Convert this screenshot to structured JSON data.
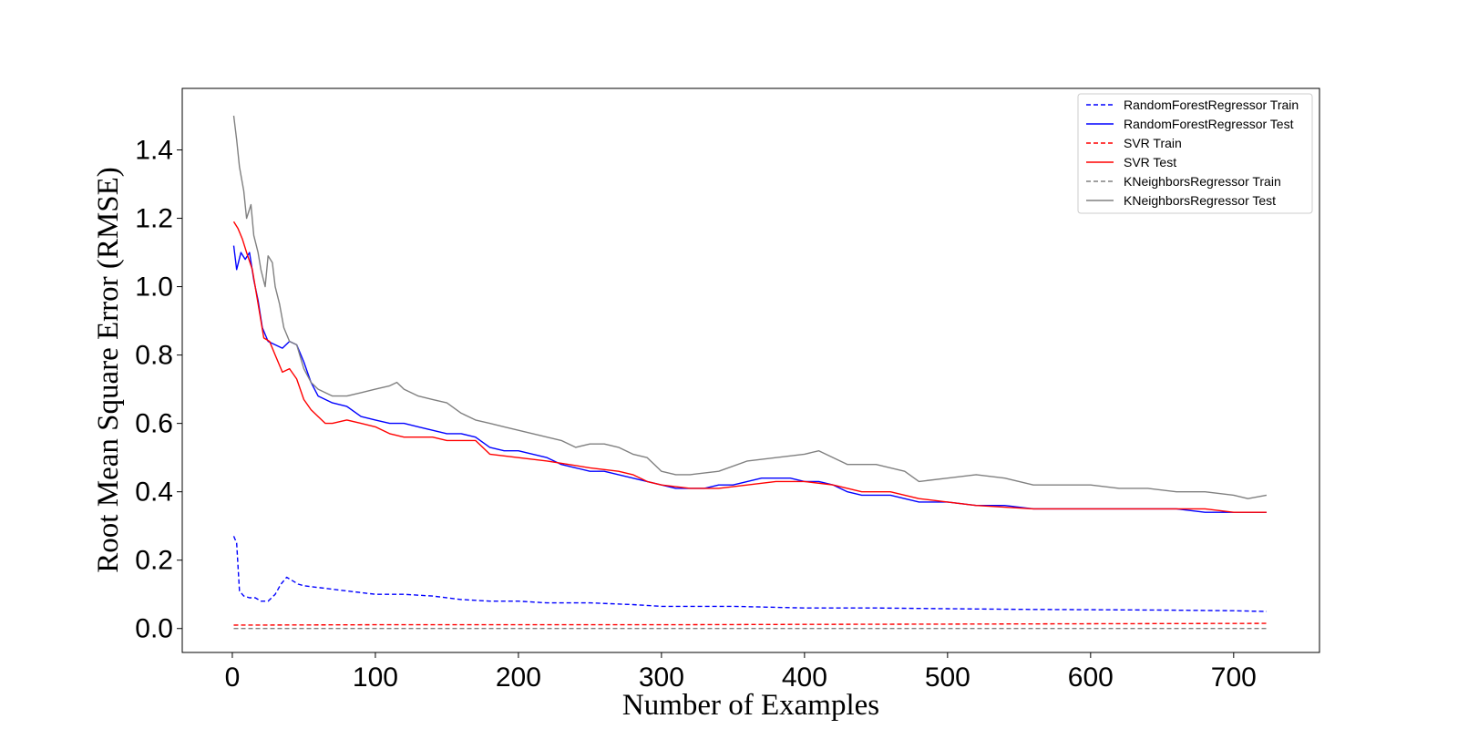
{
  "chart_data": {
    "type": "line",
    "title": "",
    "xlabel": "Number of Examples",
    "ylabel": "Root Mean Square Error (RMSE)",
    "xlim": [
      -35,
      760
    ],
    "ylim": [
      -0.07,
      1.58
    ],
    "xticks": [
      0,
      100,
      200,
      300,
      400,
      500,
      600,
      700
    ],
    "yticks": [
      0.0,
      0.2,
      0.4,
      0.6,
      0.8,
      1.0,
      1.2,
      1.4
    ],
    "ytick_labels": [
      "0.0",
      "0.2",
      "0.4",
      "0.6",
      "0.8",
      "1.0",
      "1.2",
      "1.4"
    ],
    "grid": false,
    "legend_position": "top-right",
    "series": [
      {
        "name": "RandomForestRegressor Train",
        "color": "#0000ff",
        "dash": "dashed",
        "x": [
          1,
          3,
          5,
          8,
          12,
          16,
          20,
          25,
          30,
          34,
          38,
          42,
          46,
          50,
          60,
          70,
          80,
          90,
          100,
          120,
          140,
          160,
          180,
          200,
          220,
          250,
          280,
          300,
          350,
          400,
          450,
          500,
          550,
          600,
          650,
          700,
          723
        ],
        "y": [
          0.27,
          0.25,
          0.11,
          0.095,
          0.09,
          0.09,
          0.08,
          0.08,
          0.1,
          0.13,
          0.15,
          0.14,
          0.13,
          0.125,
          0.12,
          0.115,
          0.11,
          0.105,
          0.1,
          0.1,
          0.095,
          0.085,
          0.08,
          0.08,
          0.075,
          0.075,
          0.07,
          0.065,
          0.065,
          0.06,
          0.06,
          0.058,
          0.056,
          0.055,
          0.054,
          0.052,
          0.05
        ]
      },
      {
        "name": "RandomForestRegressor Test",
        "color": "#0000ff",
        "dash": "solid",
        "x": [
          1,
          3,
          6,
          9,
          12,
          15,
          18,
          21,
          25,
          30,
          35,
          40,
          45,
          50,
          55,
          60,
          70,
          80,
          90,
          100,
          110,
          120,
          130,
          140,
          150,
          160,
          170,
          180,
          190,
          200,
          210,
          220,
          230,
          240,
          250,
          260,
          270,
          280,
          290,
          300,
          310,
          320,
          330,
          340,
          350,
          360,
          370,
          380,
          390,
          400,
          410,
          420,
          430,
          440,
          450,
          460,
          470,
          480,
          500,
          520,
          540,
          560,
          580,
          600,
          620,
          640,
          660,
          680,
          700,
          723
        ],
        "y": [
          1.12,
          1.05,
          1.1,
          1.08,
          1.1,
          1.02,
          0.96,
          0.88,
          0.84,
          0.83,
          0.82,
          0.84,
          0.83,
          0.78,
          0.72,
          0.68,
          0.66,
          0.65,
          0.62,
          0.61,
          0.6,
          0.6,
          0.59,
          0.58,
          0.57,
          0.57,
          0.56,
          0.53,
          0.52,
          0.52,
          0.51,
          0.5,
          0.48,
          0.47,
          0.46,
          0.46,
          0.45,
          0.44,
          0.43,
          0.42,
          0.41,
          0.41,
          0.41,
          0.42,
          0.42,
          0.43,
          0.44,
          0.44,
          0.44,
          0.43,
          0.43,
          0.42,
          0.4,
          0.39,
          0.39,
          0.39,
          0.38,
          0.37,
          0.37,
          0.36,
          0.36,
          0.35,
          0.35,
          0.35,
          0.35,
          0.35,
          0.35,
          0.34,
          0.34,
          0.34
        ]
      },
      {
        "name": "SVR Train",
        "color": "#ff0000",
        "dash": "dashed",
        "x": [
          1,
          100,
          200,
          300,
          400,
          500,
          600,
          723
        ],
        "y": [
          0.01,
          0.011,
          0.011,
          0.011,
          0.012,
          0.013,
          0.014,
          0.015
        ]
      },
      {
        "name": "SVR Test",
        "color": "#ff0000",
        "dash": "solid",
        "x": [
          1,
          4,
          7,
          10,
          14,
          18,
          22,
          26,
          30,
          35,
          40,
          45,
          50,
          55,
          60,
          65,
          70,
          80,
          90,
          100,
          110,
          120,
          130,
          140,
          150,
          160,
          170,
          175,
          180,
          200,
          220,
          250,
          270,
          280,
          290,
          300,
          320,
          340,
          360,
          380,
          400,
          420,
          430,
          440,
          460,
          470,
          480,
          500,
          520,
          560,
          600,
          640,
          660,
          680,
          700,
          715,
          723
        ],
        "y": [
          1.19,
          1.17,
          1.14,
          1.1,
          1.05,
          0.95,
          0.85,
          0.84,
          0.8,
          0.75,
          0.76,
          0.73,
          0.67,
          0.64,
          0.62,
          0.6,
          0.6,
          0.61,
          0.6,
          0.59,
          0.57,
          0.56,
          0.56,
          0.56,
          0.55,
          0.55,
          0.55,
          0.53,
          0.51,
          0.5,
          0.49,
          0.47,
          0.46,
          0.45,
          0.43,
          0.42,
          0.41,
          0.41,
          0.42,
          0.43,
          0.43,
          0.42,
          0.41,
          0.4,
          0.4,
          0.39,
          0.38,
          0.37,
          0.36,
          0.35,
          0.35,
          0.35,
          0.35,
          0.35,
          0.34,
          0.34,
          0.34
        ]
      },
      {
        "name": "KNeighborsRegressor Train",
        "color": "#808080",
        "dash": "dashed",
        "x": [
          1,
          723
        ],
        "y": [
          0.0,
          0.0
        ]
      },
      {
        "name": "KNeighborsRegressor Test",
        "color": "#808080",
        "dash": "solid",
        "x": [
          1,
          3,
          5,
          8,
          10,
          13,
          15,
          18,
          20,
          23,
          25,
          28,
          30,
          33,
          36,
          40,
          45,
          50,
          55,
          60,
          70,
          80,
          90,
          100,
          110,
          115,
          120,
          130,
          140,
          150,
          160,
          170,
          180,
          190,
          200,
          210,
          220,
          230,
          240,
          250,
          260,
          270,
          280,
          290,
          300,
          310,
          320,
          340,
          360,
          380,
          400,
          410,
          420,
          430,
          450,
          470,
          480,
          500,
          520,
          540,
          560,
          580,
          600,
          620,
          640,
          660,
          680,
          700,
          710,
          723
        ],
        "y": [
          1.5,
          1.43,
          1.35,
          1.28,
          1.2,
          1.24,
          1.15,
          1.1,
          1.05,
          1.0,
          1.09,
          1.07,
          1.0,
          0.95,
          0.88,
          0.84,
          0.83,
          0.76,
          0.72,
          0.7,
          0.68,
          0.68,
          0.69,
          0.7,
          0.71,
          0.72,
          0.7,
          0.68,
          0.67,
          0.66,
          0.63,
          0.61,
          0.6,
          0.59,
          0.58,
          0.57,
          0.56,
          0.55,
          0.53,
          0.54,
          0.54,
          0.53,
          0.51,
          0.5,
          0.46,
          0.45,
          0.45,
          0.46,
          0.49,
          0.5,
          0.51,
          0.52,
          0.5,
          0.48,
          0.48,
          0.46,
          0.43,
          0.44,
          0.45,
          0.44,
          0.42,
          0.42,
          0.42,
          0.41,
          0.41,
          0.4,
          0.4,
          0.39,
          0.38,
          0.39
        ]
      }
    ]
  }
}
